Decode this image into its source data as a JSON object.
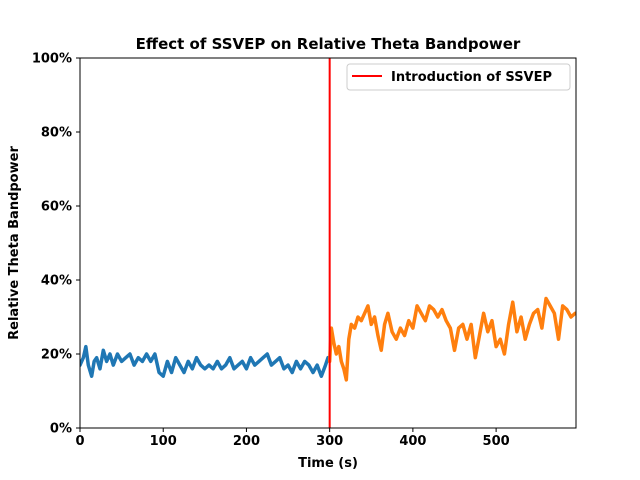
{
  "chart_data": {
    "type": "line",
    "title": "Effect of SSVEP on Relative Theta Bandpower",
    "xlabel": "Time (s)",
    "ylabel": "Relative Theta Bandpower",
    "xlim": [
      0,
      596
    ],
    "ylim": [
      0,
      1
    ],
    "x_ticks": [
      0,
      100,
      200,
      300,
      400,
      500
    ],
    "x_tick_labels": [
      "0",
      "100",
      "200",
      "300",
      "400",
      "500"
    ],
    "y_ticks": [
      0,
      0.2,
      0.4,
      0.6,
      0.8,
      1.0
    ],
    "y_tick_labels": [
      "0%",
      "20%",
      "40%",
      "60%",
      "80%",
      "100%"
    ],
    "grid": false,
    "legend": {
      "position": "top-right",
      "entries": [
        "Introduction of SSVEP"
      ]
    },
    "vline": {
      "x": 300,
      "label": "Introduction of SSVEP",
      "color": "#ff0000"
    },
    "series": [
      {
        "color": "#1f77b4",
        "x": [
          0,
          4,
          7,
          10,
          14,
          17,
          20,
          24,
          28,
          32,
          36,
          40,
          45,
          50,
          55,
          60,
          65,
          70,
          75,
          80,
          85,
          90,
          95,
          100,
          105,
          110,
          115,
          120,
          125,
          130,
          135,
          140,
          145,
          150,
          155,
          160,
          165,
          170,
          175,
          180,
          185,
          190,
          195,
          200,
          205,
          210,
          215,
          220,
          225,
          230,
          235,
          240,
          245,
          250,
          255,
          260,
          265,
          270,
          275,
          280,
          285,
          290,
          295,
          298
        ],
        "y": [
          0.17,
          0.19,
          0.22,
          0.17,
          0.14,
          0.18,
          0.19,
          0.16,
          0.21,
          0.18,
          0.2,
          0.17,
          0.2,
          0.18,
          0.19,
          0.2,
          0.17,
          0.19,
          0.18,
          0.2,
          0.18,
          0.2,
          0.15,
          0.14,
          0.18,
          0.15,
          0.19,
          0.17,
          0.15,
          0.18,
          0.16,
          0.19,
          0.17,
          0.16,
          0.17,
          0.16,
          0.18,
          0.16,
          0.17,
          0.19,
          0.16,
          0.17,
          0.18,
          0.16,
          0.19,
          0.17,
          0.18,
          0.19,
          0.2,
          0.17,
          0.18,
          0.19,
          0.16,
          0.17,
          0.15,
          0.18,
          0.16,
          0.18,
          0.17,
          0.15,
          0.17,
          0.14,
          0.17,
          0.19
        ]
      },
      {
        "color": "#ff7f0e",
        "x": [
          300,
          302,
          305,
          308,
          311,
          314,
          317,
          320,
          323,
          326,
          330,
          334,
          338,
          342,
          346,
          350,
          354,
          358,
          362,
          366,
          370,
          375,
          380,
          385,
          390,
          395,
          400,
          405,
          410,
          415,
          420,
          425,
          430,
          435,
          440,
          445,
          450,
          455,
          460,
          465,
          470,
          475,
          480,
          485,
          490,
          495,
          500,
          505,
          510,
          515,
          520,
          525,
          530,
          535,
          540,
          545,
          550,
          555,
          560,
          565,
          570,
          575,
          580,
          585,
          590,
          595
        ],
        "y": [
          0.18,
          0.27,
          0.23,
          0.2,
          0.22,
          0.18,
          0.16,
          0.13,
          0.24,
          0.28,
          0.27,
          0.3,
          0.29,
          0.31,
          0.33,
          0.28,
          0.3,
          0.25,
          0.21,
          0.28,
          0.31,
          0.26,
          0.24,
          0.27,
          0.25,
          0.29,
          0.27,
          0.33,
          0.31,
          0.29,
          0.33,
          0.32,
          0.3,
          0.32,
          0.29,
          0.27,
          0.21,
          0.27,
          0.28,
          0.24,
          0.28,
          0.19,
          0.25,
          0.31,
          0.26,
          0.29,
          0.22,
          0.24,
          0.2,
          0.28,
          0.34,
          0.26,
          0.3,
          0.24,
          0.28,
          0.31,
          0.32,
          0.27,
          0.35,
          0.33,
          0.31,
          0.24,
          0.33,
          0.32,
          0.3,
          0.31
        ]
      }
    ]
  }
}
